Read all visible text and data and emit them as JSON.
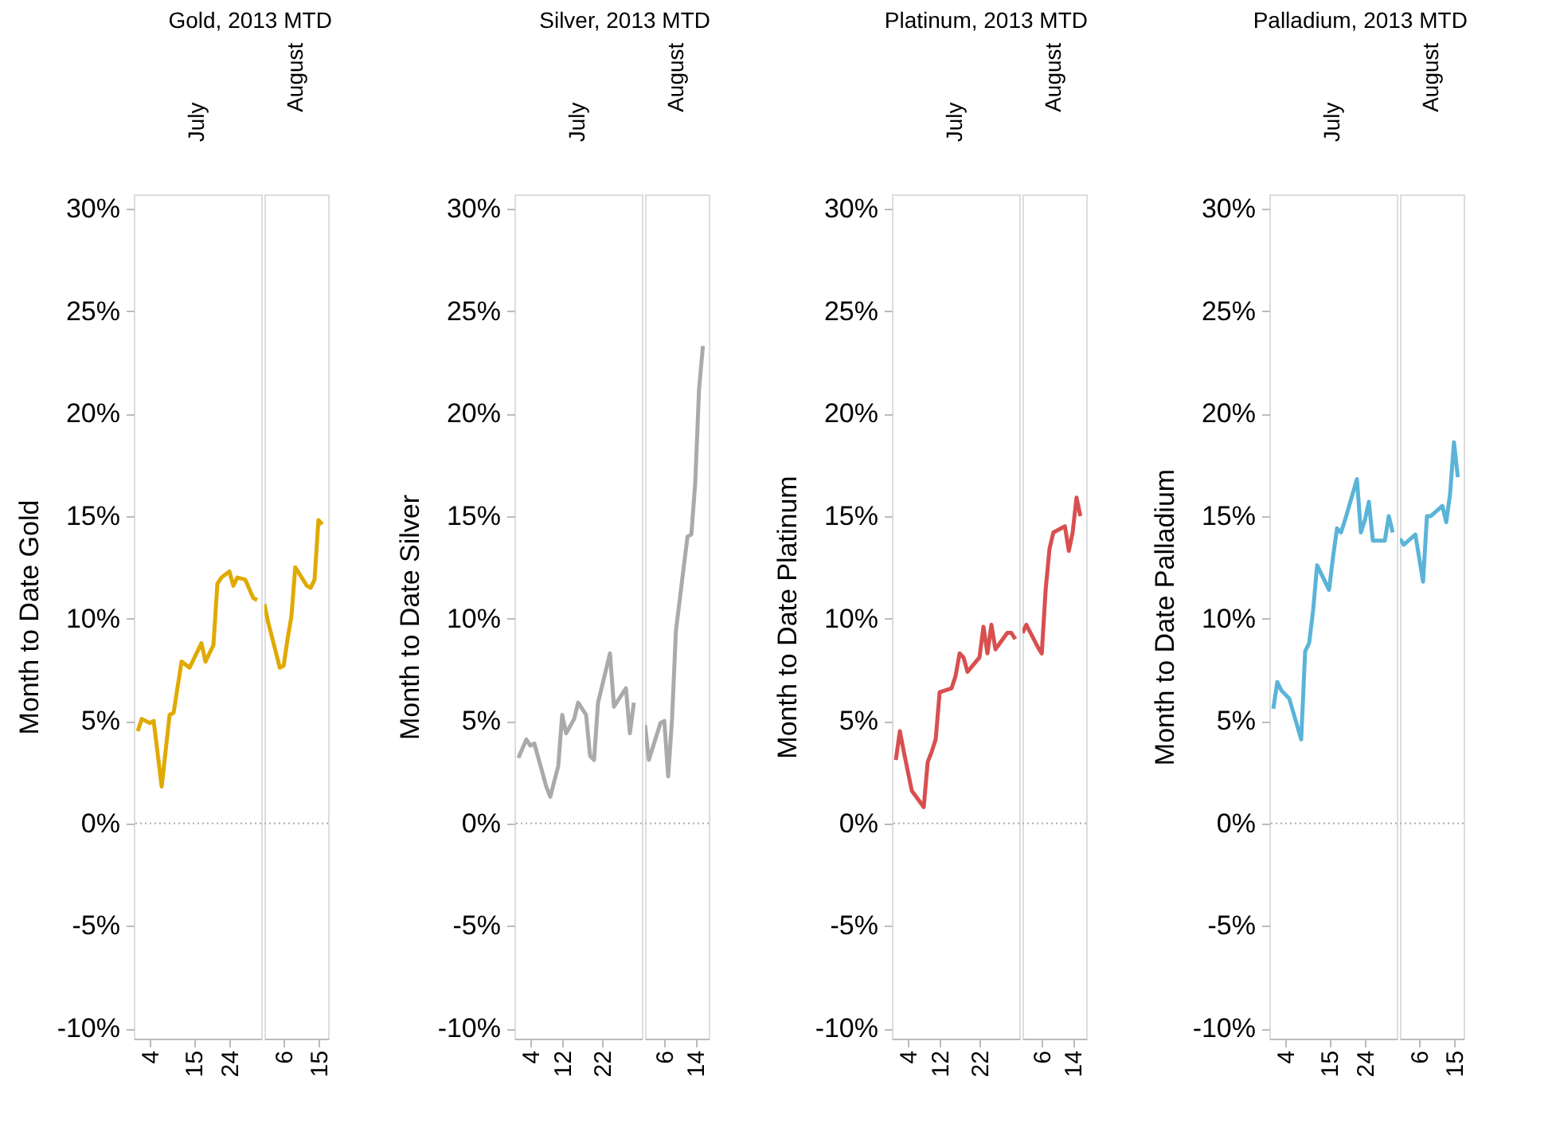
{
  "chart_data": [
    {
      "type": "line",
      "title": "Gold, 2013 MTD",
      "subtitle": "July",
      "ylabel": "Month to Date Gold",
      "x": [
        1,
        2,
        4,
        5,
        7,
        9,
        10,
        12,
        14,
        17,
        18,
        20,
        21,
        22,
        24,
        25,
        26,
        28,
        30,
        31
      ],
      "xlim": [
        0,
        32
      ],
      "xticks": [
        4,
        15,
        24
      ],
      "ylim": [
        -10.5,
        30.7
      ],
      "yticks": [
        {
          "value": -10,
          "label": "-10%"
        },
        {
          "value": -5,
          "label": "-5%"
        },
        {
          "value": 0,
          "label": "0%"
        },
        {
          "value": 5,
          "label": "5%"
        },
        {
          "value": 10,
          "label": "10%"
        },
        {
          "value": 15,
          "label": "15%"
        },
        {
          "value": 20,
          "label": "20%"
        },
        {
          "value": 25,
          "label": "25%"
        },
        {
          "value": 30,
          "label": "30%"
        }
      ],
      "series": [
        {
          "color": "#e0aa00",
          "values": [
            4.5,
            5.1,
            4.9,
            5.0,
            1.8,
            5.3,
            5.4,
            7.9,
            7.6,
            8.8,
            7.9,
            8.7,
            11.7,
            12.0,
            12.3,
            11.6,
            12.0,
            11.9,
            11.0,
            10.9
          ]
        }
      ],
      "ref_lines": [
        {
          "axis": "y",
          "value": 0,
          "color": "#aaaaaa",
          "line_style": "dotted"
        }
      ]
    },
    {
      "type": "line",
      "subtitle": "August",
      "x": [
        1,
        2,
        5,
        6,
        7,
        8,
        9,
        12,
        13,
        14,
        15,
        16
      ],
      "xlim": [
        1,
        17.5
      ],
      "xticks": [
        6,
        15
      ],
      "ylim": [
        -10.5,
        30.7
      ],
      "tick_labels": "x",
      "series": [
        {
          "color": "#e0aa00",
          "values": [
            10.7,
            9.8,
            7.6,
            7.7,
            9.0,
            10.1,
            12.5,
            11.6,
            11.5,
            11.9,
            14.8,
            14.6
          ]
        }
      ],
      "ref_lines": [
        {
          "axis": "y",
          "value": 0,
          "color": "#aaaaaa",
          "line_style": "dotted"
        }
      ]
    },
    {
      "type": "line",
      "title": "Silver, 2013 MTD",
      "subtitle": "July",
      "ylabel": "Month to Date Silver",
      "x": [
        1,
        3,
        4,
        5,
        7,
        8,
        9,
        11,
        12,
        13,
        15,
        16,
        18,
        19,
        20,
        21,
        24,
        25,
        28,
        29,
        30
      ],
      "xlim": [
        0,
        32
      ],
      "xticks": [
        4,
        12,
        22
      ],
      "ylim": [
        -10.5,
        30.7
      ],
      "yticks": [
        {
          "value": -10,
          "label": "-10%"
        },
        {
          "value": -5,
          "label": "-5%"
        },
        {
          "value": 0,
          "label": "0%"
        },
        {
          "value": 5,
          "label": "5%"
        },
        {
          "value": 10,
          "label": "10%"
        },
        {
          "value": 15,
          "label": "15%"
        },
        {
          "value": 20,
          "label": "20%"
        },
        {
          "value": 25,
          "label": "25%"
        },
        {
          "value": 30,
          "label": "30%"
        }
      ],
      "series": [
        {
          "color": "#aaaaaa",
          "values": [
            3.2,
            4.1,
            3.8,
            3.9,
            2.5,
            1.8,
            1.3,
            2.8,
            5.3,
            4.4,
            5.1,
            5.9,
            5.3,
            3.3,
            3.1,
            5.9,
            8.3,
            5.7,
            6.6,
            4.4,
            5.9
          ]
        }
      ],
      "ref_lines": [
        {
          "axis": "y",
          "value": 0,
          "color": "#aaaaaa",
          "line_style": "dotted"
        }
      ]
    },
    {
      "type": "line",
      "subtitle": "August",
      "x": [
        1,
        2,
        5,
        6,
        7,
        8,
        9,
        12,
        13,
        14,
        15,
        16
      ],
      "xlim": [
        1,
        17.5
      ],
      "xticks": [
        6,
        14
      ],
      "ylim": [
        -10.5,
        30.7
      ],
      "tick_labels": "x",
      "series": [
        {
          "color": "#aaaaaa",
          "values": [
            4.8,
            3.1,
            4.9,
            5.0,
            2.3,
            5.1,
            9.4,
            14.0,
            14.1,
            16.6,
            21.2,
            23.3
          ]
        }
      ],
      "ref_lines": [
        {
          "axis": "y",
          "value": 0,
          "color": "#aaaaaa",
          "line_style": "dotted"
        }
      ]
    },
    {
      "type": "line",
      "title": "Platinum, 2013 MTD",
      "subtitle": "July",
      "ylabel": "Month to Date Platinum",
      "x": [
        1,
        2,
        3,
        5,
        8,
        9,
        10,
        11,
        12,
        15,
        16,
        17,
        18,
        19,
        22,
        23,
        24,
        25,
        26,
        29,
        30,
        31
      ],
      "xlim": [
        0,
        32
      ],
      "xticks": [
        4,
        12,
        22
      ],
      "ylim": [
        -10.5,
        30.7
      ],
      "yticks": [
        {
          "value": -10,
          "label": "-10%"
        },
        {
          "value": -5,
          "label": "-5%"
        },
        {
          "value": 0,
          "label": "0%"
        },
        {
          "value": 5,
          "label": "5%"
        },
        {
          "value": 10,
          "label": "10%"
        },
        {
          "value": 15,
          "label": "15%"
        },
        {
          "value": 20,
          "label": "20%"
        },
        {
          "value": 25,
          "label": "25%"
        },
        {
          "value": 30,
          "label": "30%"
        }
      ],
      "series": [
        {
          "color": "#d94f4f",
          "values": [
            3.1,
            4.5,
            3.5,
            1.6,
            0.8,
            3.0,
            3.5,
            4.1,
            6.4,
            6.6,
            7.2,
            8.3,
            8.1,
            7.4,
            8.1,
            9.6,
            8.3,
            9.7,
            8.5,
            9.3,
            9.3,
            9.0
          ]
        }
      ],
      "ref_lines": [
        {
          "axis": "y",
          "value": 0,
          "color": "#aaaaaa",
          "line_style": "dotted"
        }
      ]
    },
    {
      "type": "line",
      "subtitle": "August",
      "x": [
        1,
        2,
        5,
        6,
        7,
        8,
        9,
        12,
        13,
        14,
        15,
        16
      ],
      "xlim": [
        1,
        17.5
      ],
      "xticks": [
        6,
        14
      ],
      "ylim": [
        -10.5,
        30.7
      ],
      "tick_labels": "x",
      "series": [
        {
          "color": "#d94f4f",
          "values": [
            9.3,
            9.7,
            8.6,
            8.3,
            11.4,
            13.4,
            14.2,
            14.5,
            13.3,
            14.2,
            15.9,
            15.0
          ]
        }
      ],
      "ref_lines": [
        {
          "axis": "y",
          "value": 0,
          "color": "#aaaaaa",
          "line_style": "dotted"
        }
      ]
    },
    {
      "type": "line",
      "title": "Palladium, 2013 MTD",
      "subtitle": "July",
      "ylabel": "Month to Date Palladium",
      "x": [
        1,
        2,
        3,
        5,
        8,
        9,
        10,
        11,
        12,
        15,
        16,
        17,
        18,
        19,
        22,
        23,
        24,
        25,
        26,
        29,
        30,
        31
      ],
      "xlim": [
        0,
        32
      ],
      "xticks": [
        4,
        15,
        24
      ],
      "ylim": [
        -10.5,
        30.7
      ],
      "yticks": [
        {
          "value": -10,
          "label": "-10%"
        },
        {
          "value": -5,
          "label": "-5%"
        },
        {
          "value": 0,
          "label": "0%"
        },
        {
          "value": 5,
          "label": "5%"
        },
        {
          "value": 10,
          "label": "10%"
        },
        {
          "value": 15,
          "label": "15%"
        },
        {
          "value": 20,
          "label": "20%"
        },
        {
          "value": 25,
          "label": "25%"
        },
        {
          "value": 30,
          "label": "30%"
        }
      ],
      "series": [
        {
          "color": "#5ab4d8",
          "values": [
            5.6,
            6.9,
            6.5,
            6.1,
            4.1,
            8.4,
            8.8,
            10.4,
            12.6,
            11.4,
            13.0,
            14.4,
            14.2,
            14.8,
            16.8,
            14.2,
            14.8,
            15.7,
            13.8,
            13.8,
            15.0,
            14.2
          ]
        }
      ],
      "ref_lines": [
        {
          "axis": "y",
          "value": 0,
          "color": "#aaaaaa",
          "line_style": "dotted"
        }
      ]
    },
    {
      "type": "line",
      "subtitle": "August",
      "x": [
        1,
        2,
        5,
        7,
        8,
        9,
        12,
        13,
        14,
        15,
        16
      ],
      "xlim": [
        1,
        17.5
      ],
      "xticks": [
        6,
        15
      ],
      "ylim": [
        -10.5,
        30.7
      ],
      "tick_labels": "x",
      "series": [
        {
          "color": "#5ab4d8",
          "values": [
            13.9,
            13.6,
            14.1,
            11.8,
            15.0,
            15.0,
            15.5,
            14.7,
            16.1,
            18.6,
            16.9
          ]
        }
      ],
      "ref_lines": [
        {
          "axis": "y",
          "value": 0,
          "color": "#aaaaaa",
          "line_style": "dotted"
        }
      ]
    }
  ]
}
